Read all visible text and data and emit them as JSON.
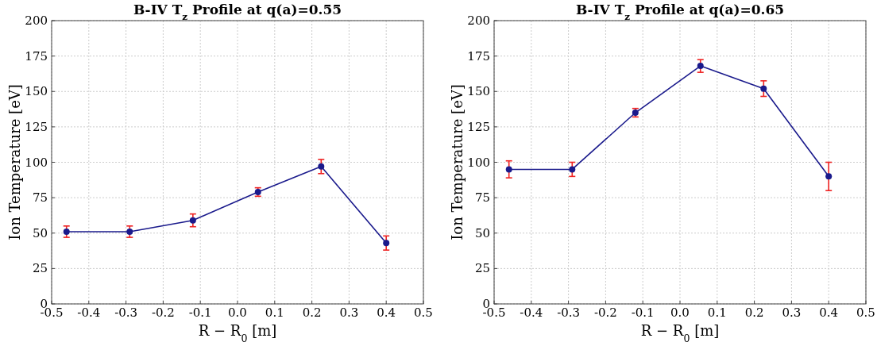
{
  "chart_data": [
    {
      "type": "line",
      "title": "B-IV T$_{z}$ Profile at q(a)=0.55",
      "xlabel": "R − R$_{0}$ [m]",
      "ylabel": "Ion Temperature [eV]",
      "x": [
        -0.46,
        -0.29,
        -0.12,
        0.055,
        0.225,
        0.4
      ],
      "series": [
        {
          "color": "#1a1a8c",
          "values": [
            51,
            51,
            59,
            79,
            97,
            43
          ],
          "errors": [
            4,
            4,
            4.5,
            3,
            5,
            5
          ]
        }
      ],
      "xlim": [
        -0.5,
        0.5
      ],
      "xticks": [
        -0.5,
        -0.4,
        -0.3,
        -0.2,
        -0.1,
        {
          "value": 0,
          "label": "0.0"
        },
        0.1,
        0.2,
        0.3,
        0.4,
        0.5
      ],
      "ylim": [
        0,
        200
      ],
      "yticks": [
        0,
        25,
        50,
        75,
        100,
        125,
        150,
        175,
        200
      ],
      "grid": true,
      "marker": "circle",
      "line_style": "solid"
    },
    {
      "type": "line",
      "title": "B-IV T$_{z}$ Profile at q(a)=0.65",
      "xlabel": "R − R$_{0}$ [m]",
      "ylabel": "Ion Temperature [eV]",
      "x": [
        -0.46,
        -0.29,
        -0.12,
        0.055,
        0.225,
        0.4
      ],
      "series": [
        {
          "color": "#1a1a8c",
          "values": [
            95,
            95,
            135,
            168,
            152,
            90
          ],
          "errors": [
            6,
            5,
            3,
            4.5,
            5.5,
            10
          ]
        }
      ],
      "xlim": [
        -0.5,
        0.5
      ],
      "xticks": [
        -0.5,
        -0.4,
        -0.3,
        -0.2,
        -0.1,
        {
          "value": 0,
          "label": "0.0"
        },
        0.1,
        0.2,
        0.3,
        0.4,
        0.5
      ],
      "ylim": [
        0,
        200
      ],
      "yticks": [
        0,
        25,
        50,
        75,
        100,
        125,
        150,
        175,
        200
      ],
      "grid": true,
      "marker": "circle",
      "line_style": "solid"
    }
  ]
}
